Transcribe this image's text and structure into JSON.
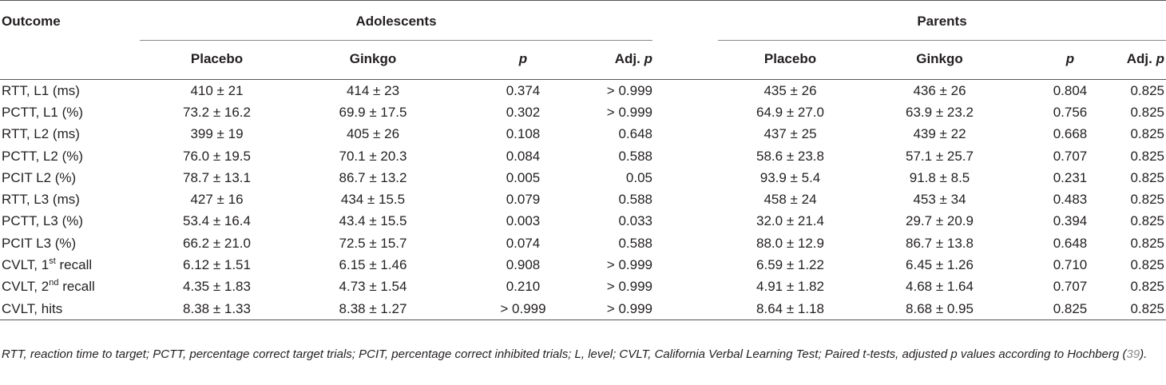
{
  "table": {
    "outcome_header": "Outcome",
    "groups": [
      "Adolescents",
      "Parents"
    ],
    "subheaders": {
      "placebo": "Placebo",
      "ginkgo": "Ginkgo",
      "p": "p",
      "adj_prefix": "Adj.",
      "adj_p": "p"
    },
    "rows": [
      {
        "label": "RTT, L1 (ms)",
        "a_placebo": "410 ± 21",
        "a_ginkgo": "414 ± 23",
        "a_p": "0.374",
        "a_adj": "> 0.999",
        "p_placebo": "435 ± 26",
        "p_ginkgo": "436 ± 26",
        "p_p": "0.804",
        "p_adj": "0.825"
      },
      {
        "label": "PCTT, L1 (%)",
        "a_placebo": "73.2 ± 16.2",
        "a_ginkgo": "69.9 ± 17.5",
        "a_p": "0.302",
        "a_adj": "> 0.999",
        "p_placebo": "64.9 ± 27.0",
        "p_ginkgo": "63.9 ± 23.2",
        "p_p": "0.756",
        "p_adj": "0.825"
      },
      {
        "label": "RTT, L2 (ms)",
        "a_placebo": "399 ± 19",
        "a_ginkgo": "405 ± 26",
        "a_p": "0.108",
        "a_adj": "0.648",
        "p_placebo": "437 ± 25",
        "p_ginkgo": "439 ± 22",
        "p_p": "0.668",
        "p_adj": "0.825"
      },
      {
        "label": "PCTT, L2 (%)",
        "a_placebo": "76.0 ± 19.5",
        "a_ginkgo": "70.1 ± 20.3",
        "a_p": "0.084",
        "a_adj": "0.588",
        "p_placebo": "58.6 ± 23.8",
        "p_ginkgo": "57.1 ± 25.7",
        "p_p": "0.707",
        "p_adj": "0.825"
      },
      {
        "label": "PCIT L2 (%)",
        "a_placebo": "78.7 ± 13.1",
        "a_ginkgo": "86.7 ± 13.2",
        "a_p": "0.005",
        "a_adj": "0.05",
        "p_placebo": "93.9 ± 5.4",
        "p_ginkgo": "91.8 ± 8.5",
        "p_p": "0.231",
        "p_adj": "0.825"
      },
      {
        "label": "RTT, L3 (ms)",
        "a_placebo": "427 ± 16",
        "a_ginkgo": "434 ± 15.5",
        "a_p": "0.079",
        "a_adj": "0.588",
        "p_placebo": "458 ± 24",
        "p_ginkgo": "453 ± 34",
        "p_p": "0.483",
        "p_adj": "0.825"
      },
      {
        "label": "PCTT, L3 (%)",
        "a_placebo": "53.4 ± 16.4",
        "a_ginkgo": "43.4 ± 15.5",
        "a_p": "0.003",
        "a_adj": "0.033",
        "p_placebo": "32.0 ± 21.4",
        "p_ginkgo": "29.7 ± 20.9",
        "p_p": "0.394",
        "p_adj": "0.825"
      },
      {
        "label": "PCIT L3 (%)",
        "a_placebo": "66.2 ± 21.0",
        "a_ginkgo": "72.5 ± 15.7",
        "a_p": "0.074",
        "a_adj": "0.588",
        "p_placebo": "88.0 ± 12.9",
        "p_ginkgo": "86.7 ± 13.8",
        "p_p": "0.648",
        "p_adj": "0.825"
      },
      {
        "label_pre": "CVLT, 1",
        "label_sup": "st",
        "label_post": " recall",
        "a_placebo": "6.12 ± 1.51",
        "a_ginkgo": "6.15 ± 1.46",
        "a_p": "0.908",
        "a_adj": "> 0.999",
        "p_placebo": "6.59 ± 1.22",
        "p_ginkgo": "6.45 ± 1.26",
        "p_p": "0.710",
        "p_adj": "0.825"
      },
      {
        "label_pre": "CVLT, 2",
        "label_sup": "nd",
        "label_post": " recall",
        "a_placebo": "4.35 ± 1.83",
        "a_ginkgo": "4.73 ± 1.54",
        "a_p": "0.210",
        "a_adj": "> 0.999",
        "p_placebo": "4.91 ± 1.82",
        "p_ginkgo": "4.68 ± 1.64",
        "p_p": "0.707",
        "p_adj": "0.825"
      },
      {
        "label": "CVLT, hits",
        "a_placebo": "8.38 ± 1.33",
        "a_ginkgo": "8.38 ± 1.27",
        "a_p": "> 0.999",
        "a_adj": "> 0.999",
        "p_placebo": "8.64 ± 1.18",
        "p_ginkgo": "8.68 ± 0.95",
        "p_p": "0.825",
        "p_adj": "0.825"
      }
    ]
  },
  "footnote": {
    "text": "RTT, reaction time to target; PCTT, percentage correct target trials; PCIT, percentage correct inhibited trials; L, level; CVLT, California Verbal Learning Test; Paired t-tests, adjusted p values according to Hochberg (",
    "ref": "39",
    "end": ")."
  }
}
